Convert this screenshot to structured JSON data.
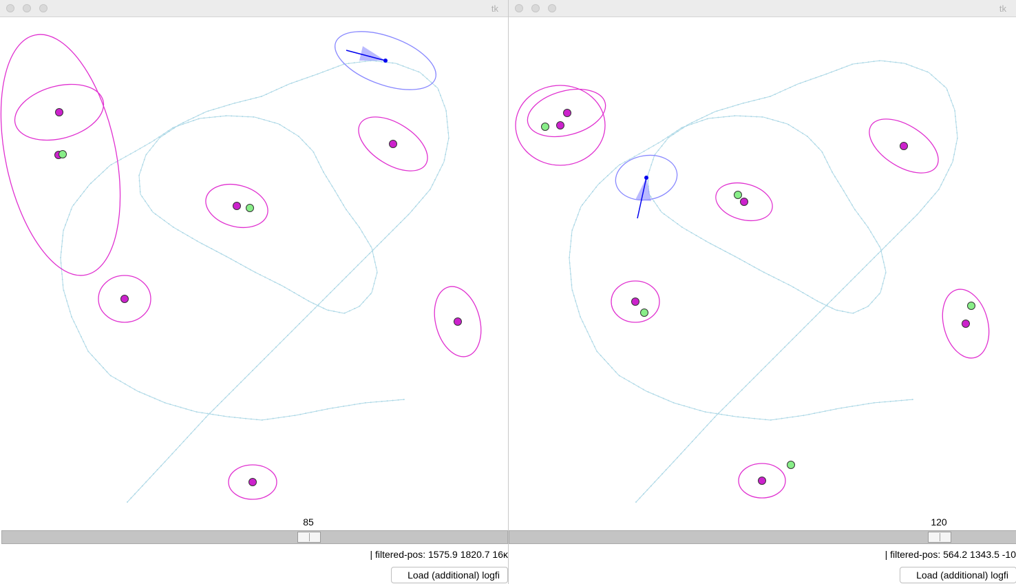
{
  "windows": [
    {
      "title": "tk",
      "slider": {
        "value": "85",
        "fraction": 0.61
      },
      "status_text": "| filtered-pos: 1575.9 1820.7 16ĸ",
      "load_button_label": "Load (additional) logfi",
      "colors": {
        "path": "#add8e6",
        "landmark": "#cc22cc",
        "ellipse": "#e030d0",
        "observation": "#88ee88",
        "robot": "#0000ee"
      }
    },
    {
      "title": "tk",
      "slider": {
        "value": "120",
        "fraction": 0.86
      },
      "status_text": "| filtered-pos: 564.2 1343.5 -10",
      "load_button_label": "Load (additional) logfi",
      "colors": {
        "path": "#add8e6",
        "landmark": "#cc22cc",
        "ellipse": "#e030d0",
        "observation": "#88ee88",
        "robot": "#0000ee"
      }
    }
  ]
}
